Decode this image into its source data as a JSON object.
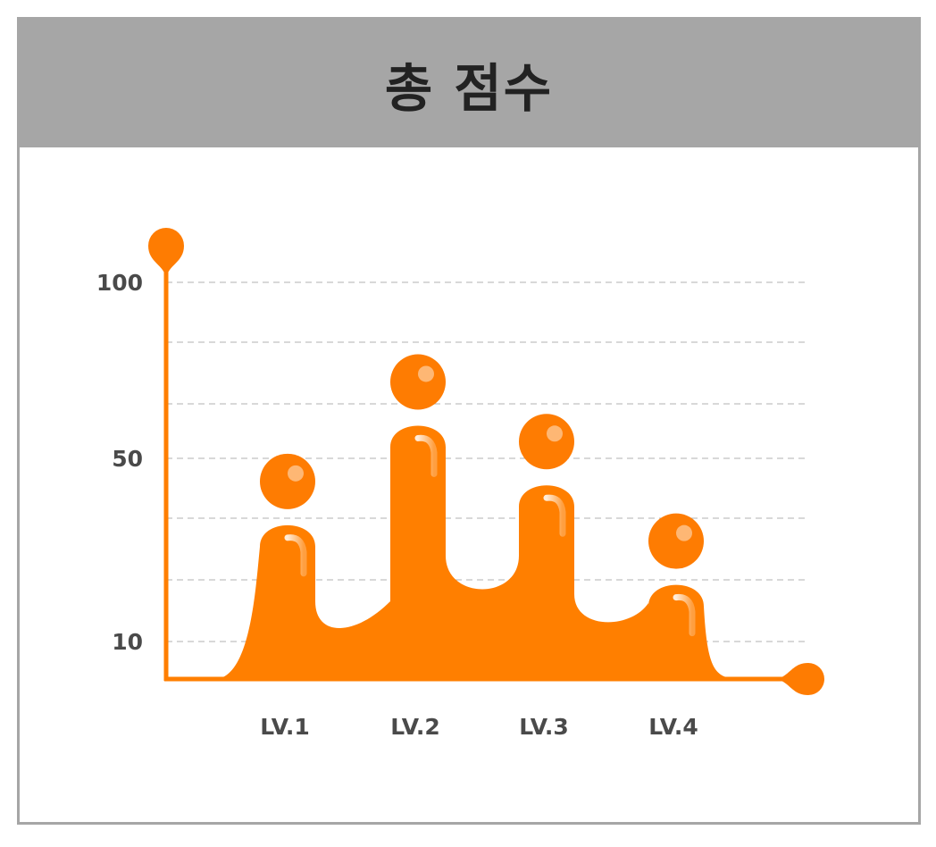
{
  "title": "총 점수",
  "colors": {
    "header_bg": "#a6a6a6",
    "accent": "#ff7f00",
    "bubble": "#fe7c02",
    "grid": "#b0b0b0",
    "label": "#4a4a4a"
  },
  "chart_data": {
    "type": "bar",
    "title": "총 점수",
    "categories": [
      "LV.1",
      "LV.2",
      "LV.3",
      "LV.4"
    ],
    "values": [
      40,
      65,
      50,
      25
    ],
    "y_tick_labels": [
      "100",
      "50",
      "10"
    ],
    "ylim": [
      0,
      110
    ],
    "grid": true,
    "grid_style": "dashed"
  }
}
